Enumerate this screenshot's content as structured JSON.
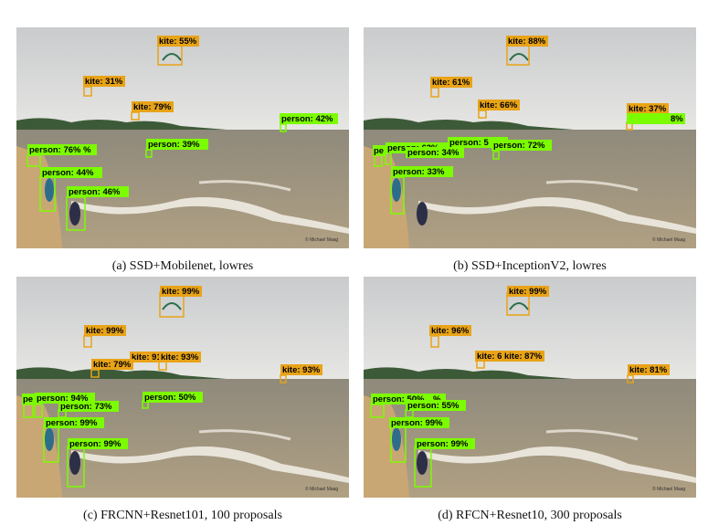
{
  "colors": {
    "kite": "#e8a317",
    "person": "#7cfc00"
  },
  "watermark": "© Michael Maag",
  "panels": [
    {
      "caption": "(a) SSD+Mobilenet, lowres",
      "labels": [
        "kite: 55%",
        "kite: 31%",
        "kite: 79%",
        "person: 42%",
        "person: 76% %",
        "person: 39%",
        "person: 44%",
        "person: 46%"
      ]
    },
    {
      "caption": "(b) SSD+InceptionV2, lowres",
      "labels": [
        "kite: 88%",
        "kite: 61%",
        "kite: 66%",
        "kite: 37%",
        "8%",
        "pe",
        "person: 63%",
        "person: 5",
        "person: 34%",
        "person: 72%",
        "person: 33%"
      ]
    },
    {
      "caption": "(c) FRCNN+Resnet101, 100 proposals",
      "labels": [
        "kite: 99%",
        "kite: 99%",
        "kite: 91%",
        "kite: 93%",
        "kite: 79%",
        "kite: 93%",
        "pe",
        "person: 94%",
        "person: 73%",
        "person: 50%",
        "person: 99%",
        "person: 99%"
      ]
    },
    {
      "caption": "(d) RFCN+Resnet10, 300 proposals",
      "labels": [
        "kite: 99%",
        "kite: 96%",
        "kite: 6",
        "kite: 87%",
        "kite: 81%",
        "person: 50%",
        "%",
        "person: 55%",
        "person: 99%",
        "person: 99%"
      ]
    }
  ]
}
